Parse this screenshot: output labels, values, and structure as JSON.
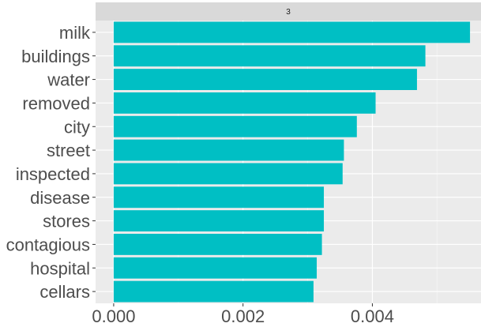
{
  "chart_data": {
    "type": "bar",
    "orientation": "horizontal",
    "facet_label": "3",
    "categories": [
      "milk",
      "buildings",
      "water",
      "removed",
      "city",
      "street",
      "inspected",
      "disease",
      "stores",
      "contagious",
      "hospital",
      "cellars"
    ],
    "values": [
      0.00551,
      0.00482,
      0.00469,
      0.00405,
      0.00376,
      0.00356,
      0.00354,
      0.00325,
      0.00325,
      0.00322,
      0.00314,
      0.00309
    ],
    "x_ticks": [
      0.0,
      0.002,
      0.004
    ],
    "x_tick_labels": [
      "0.000",
      "0.002",
      "0.004"
    ],
    "xlim": [
      -0.00028,
      0.00568
    ],
    "xlabel": "",
    "ylabel": "",
    "title": "",
    "grid": true,
    "colors": {
      "bar": "#00BFC4",
      "panel": "#EBEBEB",
      "strip": "#D9D9D9",
      "grid_major": "#FFFFFF",
      "grid_minor": "#F5F5F5",
      "axis_text": "#4D4D4D",
      "tick_mark": "#333333",
      "strip_text": "#1A1A1A"
    }
  }
}
